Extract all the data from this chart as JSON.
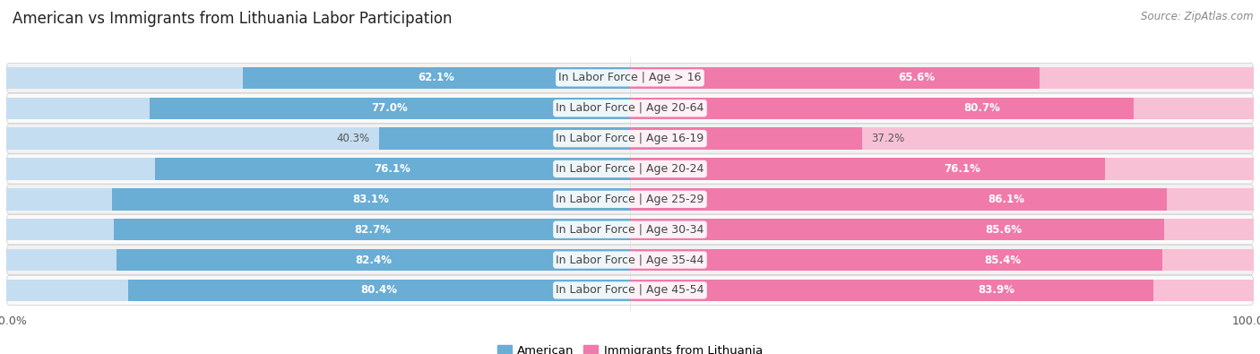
{
  "title": "American vs Immigrants from Lithuania Labor Participation",
  "source": "Source: ZipAtlas.com",
  "categories": [
    "In Labor Force | Age > 16",
    "In Labor Force | Age 20-64",
    "In Labor Force | Age 16-19",
    "In Labor Force | Age 20-24",
    "In Labor Force | Age 25-29",
    "In Labor Force | Age 30-34",
    "In Labor Force | Age 35-44",
    "In Labor Force | Age 45-54"
  ],
  "american_values": [
    62.1,
    77.0,
    40.3,
    76.1,
    83.1,
    82.7,
    82.4,
    80.4
  ],
  "lithuania_values": [
    65.6,
    80.7,
    37.2,
    76.1,
    86.1,
    85.6,
    85.4,
    83.9
  ],
  "american_color": "#6aadd5",
  "american_color_light": "#c5ddf0",
  "lithuania_color": "#f07aaa",
  "lithuania_color_light": "#f8c0d5",
  "bar_height": 0.72,
  "background_color": "#ffffff",
  "row_bg_odd": "#f2f2f2",
  "row_bg_even": "#fafafa",
  "max_value": 100.0,
  "label_fontsize": 9,
  "title_fontsize": 12,
  "value_fontsize": 8.5,
  "legend_fontsize": 9.5,
  "tick_fontsize": 9
}
